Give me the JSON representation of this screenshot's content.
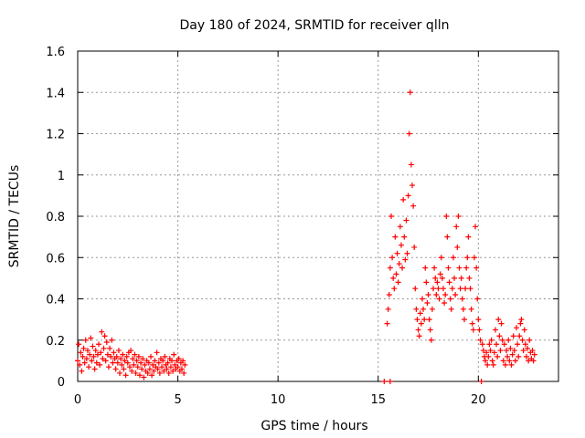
{
  "chart_data": {
    "type": "scatter",
    "title": "Day 180 of 2024, SRMTID for receiver qlln",
    "xlabel": "GPS time / hours",
    "ylabel": "SRMTID / TECUs",
    "xlim": [
      0,
      24
    ],
    "ylim": [
      0,
      1.6
    ],
    "x_ticks": [
      0,
      5,
      10,
      15,
      20
    ],
    "x_tick_labels": [
      "0",
      "5",
      "10",
      "15",
      "20"
    ],
    "y_ticks": [
      0,
      0.2,
      0.4,
      0.6,
      0.8,
      1.0,
      1.2,
      1.4,
      1.6
    ],
    "y_tick_labels": [
      "0",
      "0.2",
      "0.4",
      "0.6",
      "0.8",
      "1",
      "1.2",
      "1.4",
      "1.6"
    ],
    "grid": true,
    "marker": "plus",
    "series": [
      {
        "name": "SRMTID",
        "color": "#ff0000",
        "points": [
          [
            0.0,
            0.1
          ],
          [
            0.05,
            0.18
          ],
          [
            0.1,
            0.08
          ],
          [
            0.15,
            0.14
          ],
          [
            0.2,
            0.05
          ],
          [
            0.25,
            0.12
          ],
          [
            0.3,
            0.16
          ],
          [
            0.35,
            0.09
          ],
          [
            0.4,
            0.2
          ],
          [
            0.45,
            0.11
          ],
          [
            0.5,
            0.15
          ],
          [
            0.55,
            0.07
          ],
          [
            0.6,
            0.13
          ],
          [
            0.65,
            0.21
          ],
          [
            0.7,
            0.1
          ],
          [
            0.75,
            0.17
          ],
          [
            0.8,
            0.12
          ],
          [
            0.85,
            0.06
          ],
          [
            0.9,
            0.15
          ],
          [
            0.95,
            0.09
          ],
          [
            1.0,
            0.13
          ],
          [
            1.05,
            0.18
          ],
          [
            1.1,
            0.08
          ],
          [
            1.15,
            0.14
          ],
          [
            1.2,
            0.24
          ],
          [
            1.25,
            0.11
          ],
          [
            1.3,
            0.16
          ],
          [
            1.35,
            0.22
          ],
          [
            1.4,
            0.1
          ],
          [
            1.45,
            0.19
          ],
          [
            1.5,
            0.13
          ],
          [
            1.55,
            0.07
          ],
          [
            1.6,
            0.16
          ],
          [
            1.65,
            0.12
          ],
          [
            1.7,
            0.2
          ],
          [
            1.75,
            0.09
          ],
          [
            1.8,
            0.14
          ],
          [
            1.85,
            0.11
          ],
          [
            1.9,
            0.06
          ],
          [
            1.95,
            0.12
          ],
          [
            2.0,
            0.09
          ],
          [
            2.05,
            0.15
          ],
          [
            2.1,
            0.04
          ],
          [
            2.15,
            0.11
          ],
          [
            2.2,
            0.08
          ],
          [
            2.25,
            0.13
          ],
          [
            2.3,
            0.06
          ],
          [
            2.35,
            0.1
          ],
          [
            2.4,
            0.03
          ],
          [
            2.45,
            0.12
          ],
          [
            2.5,
            0.09
          ],
          [
            2.55,
            0.14
          ],
          [
            2.6,
            0.07
          ],
          [
            2.65,
            0.15
          ],
          [
            2.7,
            0.05
          ],
          [
            2.75,
            0.11
          ],
          [
            2.8,
            0.08
          ],
          [
            2.85,
            0.13
          ],
          [
            2.9,
            0.04
          ],
          [
            2.95,
            0.1
          ],
          [
            3.0,
            0.07
          ],
          [
            3.05,
            0.12
          ],
          [
            3.1,
            0.03
          ],
          [
            3.15,
            0.09
          ],
          [
            3.2,
            0.06
          ],
          [
            3.25,
            0.11
          ],
          [
            3.3,
            0.02
          ],
          [
            3.35,
            0.08
          ],
          [
            3.4,
            0.05
          ],
          [
            3.45,
            0.1
          ],
          [
            3.5,
            0.04
          ],
          [
            3.55,
            0.09
          ],
          [
            3.6,
            0.06
          ],
          [
            3.65,
            0.12
          ],
          [
            3.7,
            0.03
          ],
          [
            3.75,
            0.08
          ],
          [
            3.8,
            0.05
          ],
          [
            3.85,
            0.1
          ],
          [
            3.9,
            0.07
          ],
          [
            3.95,
            0.14
          ],
          [
            4.0,
            0.06
          ],
          [
            4.05,
            0.09
          ],
          [
            4.1,
            0.04
          ],
          [
            4.15,
            0.11
          ],
          [
            4.2,
            0.07
          ],
          [
            4.25,
            0.1
          ],
          [
            4.3,
            0.05
          ],
          [
            4.35,
            0.12
          ],
          [
            4.4,
            0.08
          ],
          [
            4.45,
            0.06
          ],
          [
            4.5,
            0.09
          ],
          [
            4.55,
            0.04
          ],
          [
            4.6,
            0.11
          ],
          [
            4.65,
            0.07
          ],
          [
            4.7,
            0.1
          ],
          [
            4.75,
            0.05
          ],
          [
            4.8,
            0.13
          ],
          [
            4.85,
            0.08
          ],
          [
            4.9,
            0.06
          ],
          [
            4.95,
            0.1
          ],
          [
            5.0,
            0.07
          ],
          [
            5.05,
            0.11
          ],
          [
            5.1,
            0.05
          ],
          [
            5.15,
            0.09
          ],
          [
            5.2,
            0.06
          ],
          [
            5.25,
            0.1
          ],
          [
            5.3,
            0.04
          ],
          [
            5.35,
            0.08
          ],
          [
            15.3,
            0.0
          ],
          [
            15.6,
            0.0
          ],
          [
            15.45,
            0.28
          ],
          [
            15.5,
            0.35
          ],
          [
            15.55,
            0.42
          ],
          [
            15.6,
            0.55
          ],
          [
            15.65,
            0.8
          ],
          [
            15.7,
            0.6
          ],
          [
            15.75,
            0.5
          ],
          [
            15.8,
            0.45
          ],
          [
            15.85,
            0.7
          ],
          [
            15.9,
            0.52
          ],
          [
            15.95,
            0.62
          ],
          [
            16.0,
            0.48
          ],
          [
            16.05,
            0.57
          ],
          [
            16.1,
            0.75
          ],
          [
            16.15,
            0.66
          ],
          [
            16.2,
            0.55
          ],
          [
            16.25,
            0.88
          ],
          [
            16.3,
            0.7
          ],
          [
            16.35,
            0.59
          ],
          [
            16.4,
            0.78
          ],
          [
            16.45,
            0.62
          ],
          [
            16.5,
            0.9
          ],
          [
            16.55,
            1.2
          ],
          [
            16.6,
            1.4
          ],
          [
            16.65,
            1.05
          ],
          [
            16.7,
            0.95
          ],
          [
            16.75,
            0.85
          ],
          [
            16.8,
            0.65
          ],
          [
            16.85,
            0.45
          ],
          [
            16.9,
            0.35
          ],
          [
            16.95,
            0.3
          ],
          [
            17.0,
            0.25
          ],
          [
            17.05,
            0.22
          ],
          [
            17.1,
            0.33
          ],
          [
            17.15,
            0.28
          ],
          [
            17.2,
            0.4
          ],
          [
            17.25,
            0.35
          ],
          [
            17.3,
            0.3
          ],
          [
            17.35,
            0.55
          ],
          [
            17.4,
            0.48
          ],
          [
            17.45,
            0.38
          ],
          [
            17.5,
            0.42
          ],
          [
            17.55,
            0.3
          ],
          [
            17.6,
            0.25
          ],
          [
            17.65,
            0.2
          ],
          [
            17.7,
            0.35
          ],
          [
            17.75,
            0.45
          ],
          [
            17.8,
            0.55
          ],
          [
            17.85,
            0.5
          ],
          [
            17.9,
            0.42
          ],
          [
            17.95,
            0.48
          ],
          [
            18.0,
            0.45
          ],
          [
            18.05,
            0.4
          ],
          [
            18.1,
            0.52
          ],
          [
            18.15,
            0.6
          ],
          [
            18.2,
            0.5
          ],
          [
            18.25,
            0.45
          ],
          [
            18.3,
            0.38
          ],
          [
            18.35,
            0.42
          ],
          [
            18.4,
            0.8
          ],
          [
            18.45,
            0.7
          ],
          [
            18.5,
            0.55
          ],
          [
            18.55,
            0.48
          ],
          [
            18.6,
            0.4
          ],
          [
            18.65,
            0.35
          ],
          [
            18.7,
            0.45
          ],
          [
            18.75,
            0.6
          ],
          [
            18.8,
            0.5
          ],
          [
            18.85,
            0.42
          ],
          [
            18.9,
            0.75
          ],
          [
            18.95,
            0.65
          ],
          [
            19.0,
            0.8
          ],
          [
            19.05,
            0.55
          ],
          [
            19.1,
            0.45
          ],
          [
            19.15,
            0.5
          ],
          [
            19.2,
            0.4
          ],
          [
            19.25,
            0.35
          ],
          [
            19.3,
            0.3
          ],
          [
            19.35,
            0.45
          ],
          [
            19.4,
            0.55
          ],
          [
            19.45,
            0.6
          ],
          [
            19.5,
            0.7
          ],
          [
            19.55,
            0.5
          ],
          [
            19.6,
            0.45
          ],
          [
            19.65,
            0.35
          ],
          [
            19.7,
            0.28
          ],
          [
            19.75,
            0.25
          ],
          [
            19.8,
            0.6
          ],
          [
            19.85,
            0.75
          ],
          [
            19.9,
            0.55
          ],
          [
            19.95,
            0.4
          ],
          [
            20.0,
            0.3
          ],
          [
            20.05,
            0.25
          ],
          [
            20.1,
            0.2
          ],
          [
            20.15,
            0.0
          ],
          [
            20.2,
            0.18
          ],
          [
            20.25,
            0.15
          ],
          [
            20.3,
            0.12
          ],
          [
            20.35,
            0.1
          ],
          [
            20.4,
            0.14
          ],
          [
            20.45,
            0.08
          ],
          [
            20.5,
            0.12
          ],
          [
            20.55,
            0.18
          ],
          [
            20.6,
            0.15
          ],
          [
            20.65,
            0.2
          ],
          [
            20.7,
            0.1
          ],
          [
            20.75,
            0.08
          ],
          [
            20.8,
            0.14
          ],
          [
            20.85,
            0.25
          ],
          [
            20.9,
            0.18
          ],
          [
            20.95,
            0.12
          ],
          [
            21.0,
            0.3
          ],
          [
            21.05,
            0.22
          ],
          [
            21.1,
            0.15
          ],
          [
            21.15,
            0.28
          ],
          [
            21.2,
            0.2
          ],
          [
            21.25,
            0.1
          ],
          [
            21.3,
            0.18
          ],
          [
            21.35,
            0.08
          ],
          [
            21.4,
            0.15
          ],
          [
            21.45,
            0.12
          ],
          [
            21.5,
            0.2
          ],
          [
            21.55,
            0.1
          ],
          [
            21.6,
            0.16
          ],
          [
            21.65,
            0.08
          ],
          [
            21.7,
            0.13
          ],
          [
            21.75,
            0.22
          ],
          [
            21.8,
            0.15
          ],
          [
            21.85,
            0.1
          ],
          [
            21.9,
            0.26
          ],
          [
            21.95,
            0.18
          ],
          [
            22.0,
            0.12
          ],
          [
            22.05,
            0.22
          ],
          [
            22.1,
            0.28
          ],
          [
            22.15,
            0.3
          ],
          [
            22.2,
            0.2
          ],
          [
            22.25,
            0.15
          ],
          [
            22.3,
            0.25
          ],
          [
            22.35,
            0.18
          ],
          [
            22.4,
            0.12
          ],
          [
            22.45,
            0.16
          ],
          [
            22.5,
            0.1
          ],
          [
            22.55,
            0.2
          ],
          [
            22.6,
            0.14
          ],
          [
            22.65,
            0.11
          ],
          [
            22.7,
            0.15
          ],
          [
            22.75,
            0.1
          ],
          [
            22.8,
            0.13
          ]
        ]
      }
    ]
  }
}
